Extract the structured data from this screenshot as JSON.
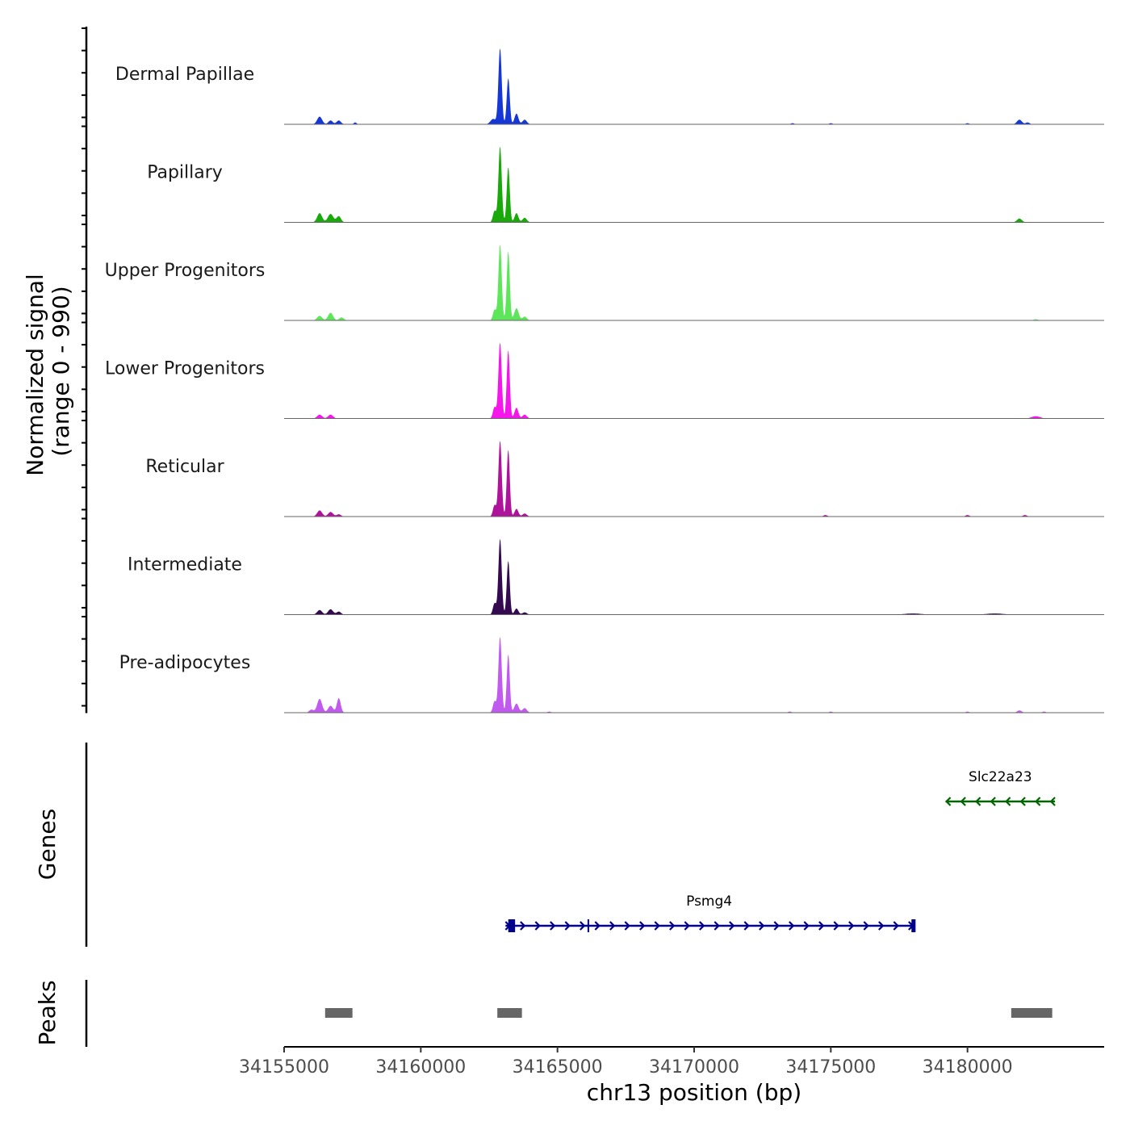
{
  "chart_data": {
    "type": "area",
    "title": "",
    "region": {
      "chromosome": "chr13",
      "start": 34155000,
      "end": 34185000
    },
    "coverage": {
      "ylabel_line1": "Normalized signal",
      "ylabel_line2": "(range 0 - 990)",
      "ylim": [
        0,
        990
      ],
      "series": [
        {
          "name": "Dermal Papillae",
          "color": "#1537d6",
          "peaks": [
            [
              34156300,
              100,
              90
            ],
            [
              34156700,
              50,
              80
            ],
            [
              34157000,
              50,
              80
            ],
            [
              34157600,
              25,
              50
            ],
            [
              34162900,
              990,
              60
            ],
            [
              34163200,
              600,
              55
            ],
            [
              34163500,
              140,
              70
            ],
            [
              34162650,
              70,
              100
            ],
            [
              34163800,
              60,
              80
            ],
            [
              34173600,
              15,
              60
            ],
            [
              34175000,
              15,
              60
            ],
            [
              34180000,
              15,
              60
            ],
            [
              34181900,
              60,
              90
            ],
            [
              34182200,
              25,
              70
            ]
          ]
        },
        {
          "name": "Papillary",
          "color": "#19a90a",
          "peaks": [
            [
              34156300,
              120,
              90
            ],
            [
              34156700,
              110,
              100
            ],
            [
              34157000,
              80,
              80
            ],
            [
              34162900,
              990,
              60
            ],
            [
              34163200,
              720,
              55
            ],
            [
              34162700,
              150,
              60
            ],
            [
              34163500,
              120,
              70
            ],
            [
              34163800,
              60,
              80
            ],
            [
              34181900,
              50,
              90
            ]
          ]
        },
        {
          "name": "Upper Progenitors",
          "color": "#5ee65b",
          "peaks": [
            [
              34156300,
              60,
              90
            ],
            [
              34156700,
              100,
              90
            ],
            [
              34157100,
              40,
              80
            ],
            [
              34162900,
              990,
              60
            ],
            [
              34163200,
              900,
              55
            ],
            [
              34162700,
              140,
              60
            ],
            [
              34163500,
              160,
              80
            ],
            [
              34163800,
              50,
              80
            ],
            [
              34182500,
              15,
              80
            ]
          ]
        },
        {
          "name": "Lower Progenitors",
          "color": "#f416ea",
          "peaks": [
            [
              34156300,
              50,
              90
            ],
            [
              34156700,
              50,
              90
            ],
            [
              34162900,
              990,
              60
            ],
            [
              34163200,
              890,
              55
            ],
            [
              34162700,
              150,
              60
            ],
            [
              34163500,
              140,
              70
            ],
            [
              34163800,
              50,
              80
            ],
            [
              34182500,
              30,
              150
            ]
          ]
        },
        {
          "name": "Reticular",
          "color": "#b0139b",
          "peaks": [
            [
              34156300,
              80,
              90
            ],
            [
              34156700,
              60,
              90
            ],
            [
              34157000,
              30,
              80
            ],
            [
              34162900,
              990,
              60
            ],
            [
              34163200,
              870,
              55
            ],
            [
              34162700,
              150,
              60
            ],
            [
              34163500,
              100,
              70
            ],
            [
              34163800,
              40,
              80
            ],
            [
              34174800,
              20,
              70
            ],
            [
              34180000,
              20,
              70
            ],
            [
              34182100,
              20,
              70
            ]
          ]
        },
        {
          "name": "Intermediate",
          "color": "#34094f",
          "peaks": [
            [
              34156300,
              60,
              90
            ],
            [
              34156700,
              70,
              90
            ],
            [
              34157000,
              40,
              80
            ],
            [
              34162900,
              990,
              60
            ],
            [
              34163200,
              700,
              55
            ],
            [
              34162700,
              150,
              60
            ],
            [
              34163500,
              80,
              70
            ],
            [
              34163800,
              30,
              80
            ],
            [
              34178000,
              15,
              300
            ],
            [
              34181000,
              15,
              300
            ]
          ]
        },
        {
          "name": "Pre-adipocytes",
          "color": "#c15aef",
          "peaks": [
            [
              34156300,
              180,
              90
            ],
            [
              34156700,
              90,
              90
            ],
            [
              34157000,
              190,
              70
            ],
            [
              34156000,
              40,
              80
            ],
            [
              34162900,
              990,
              60
            ],
            [
              34163200,
              760,
              55
            ],
            [
              34162700,
              150,
              60
            ],
            [
              34163500,
              120,
              80
            ],
            [
              34163800,
              60,
              80
            ],
            [
              34164700,
              15,
              60
            ],
            [
              34173500,
              15,
              60
            ],
            [
              34175000,
              15,
              60
            ],
            [
              34180000,
              15,
              60
            ],
            [
              34181900,
              30,
              80
            ],
            [
              34182800,
              15,
              60
            ]
          ]
        }
      ]
    },
    "genes": {
      "label": "Genes",
      "items": [
        {
          "name": "Slc22a23",
          "start": 34179200,
          "end": 34183200,
          "strand": "-",
          "color": "#006400",
          "row": 0,
          "exons": []
        },
        {
          "name": "Psmg4",
          "start": 34163100,
          "end": 34178000,
          "strand": "+",
          "color": "#00008b",
          "row": 1,
          "exons": [
            [
              34163200,
              34163450
            ],
            [
              34166100,
              34166150
            ],
            [
              34177950,
              34178100
            ]
          ]
        }
      ]
    },
    "peaks": {
      "label": "Peaks",
      "color": "#666666",
      "items": [
        [
          34156500,
          34157500
        ],
        [
          34162800,
          34163700
        ],
        [
          34181600,
          34183100
        ]
      ]
    },
    "x_axis": {
      "label": "chr13 position (bp)",
      "ticks": [
        34155000,
        34160000,
        34165000,
        34170000,
        34175000,
        34180000
      ],
      "tick_labels": [
        "34155000",
        "34160000",
        "34165000",
        "34170000",
        "34175000",
        "34180000"
      ]
    }
  }
}
